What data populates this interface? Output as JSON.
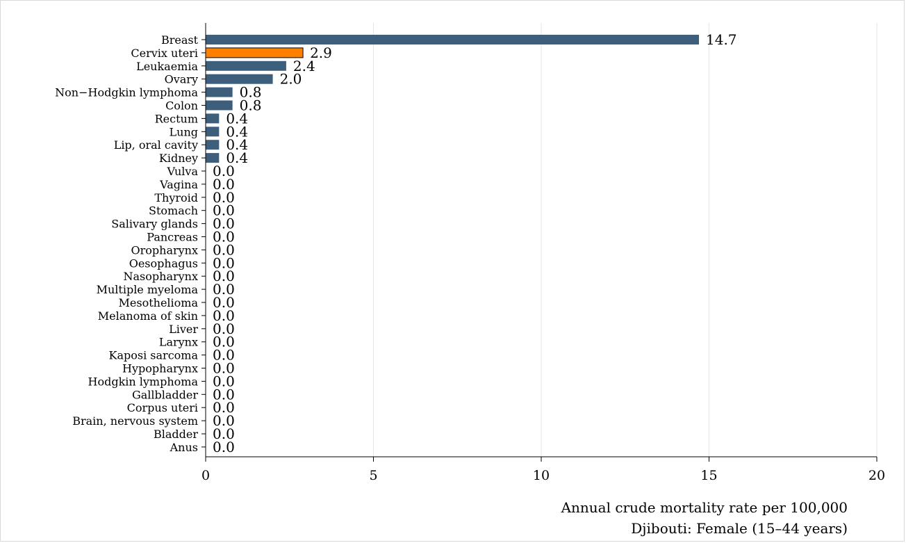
{
  "chart_data": {
    "type": "bar",
    "orientation": "horizontal",
    "title": "",
    "categories": [
      "Breast",
      "Cervix uteri",
      "Leukaemia",
      "Ovary",
      "Non−Hodgkin lymphoma",
      "Colon",
      "Rectum",
      "Lung",
      "Lip, oral cavity",
      "Kidney",
      "Vulva",
      "Vagina",
      "Thyroid",
      "Stomach",
      "Salivary glands",
      "Pancreas",
      "Oropharynx",
      "Oesophagus",
      "Nasopharynx",
      "Multiple myeloma",
      "Mesothelioma",
      "Melanoma of skin",
      "Liver",
      "Larynx",
      "Kaposi sarcoma",
      "Hypopharynx",
      "Hodgkin lymphoma",
      "Gallbladder",
      "Corpus uteri",
      "Brain, nervous system",
      "Bladder",
      "Anus"
    ],
    "values": [
      14.7,
      2.9,
      2.4,
      2.0,
      0.8,
      0.8,
      0.4,
      0.4,
      0.4,
      0.4,
      0.0,
      0.0,
      0.0,
      0.0,
      0.0,
      0.0,
      0.0,
      0.0,
      0.0,
      0.0,
      0.0,
      0.0,
      0.0,
      0.0,
      0.0,
      0.0,
      0.0,
      0.0,
      0.0,
      0.0,
      0.0,
      0.0
    ],
    "value_labels": [
      "14.7",
      "2.9",
      "2.4",
      "2.0",
      "0.8",
      "0.8",
      "0.4",
      "0.4",
      "0.4",
      "0.4",
      "0.0",
      "0.0",
      "0.0",
      "0.0",
      "0.0",
      "0.0",
      "0.0",
      "0.0",
      "0.0",
      "0.0",
      "0.0",
      "0.0",
      "0.0",
      "0.0",
      "0.0",
      "0.0",
      "0.0",
      "0.0",
      "0.0",
      "0.0",
      "0.0",
      "0.0"
    ],
    "highlight_category": "Cervix uteri",
    "xlim": [
      0,
      20
    ],
    "xticks": [
      0,
      5,
      10,
      15,
      20
    ],
    "xtick_labels": [
      "0",
      "5",
      "10",
      "15",
      "20"
    ],
    "xlabel": "Annual crude mortality rate per 100,000",
    "subtitle": "Djibouti: Female (15–44 years)",
    "grid": "vertical",
    "colors": {
      "bar": "#3d5f7c",
      "highlight": "#ff8000",
      "grid": "#e6e6e6",
      "axis": "#000000"
    }
  }
}
